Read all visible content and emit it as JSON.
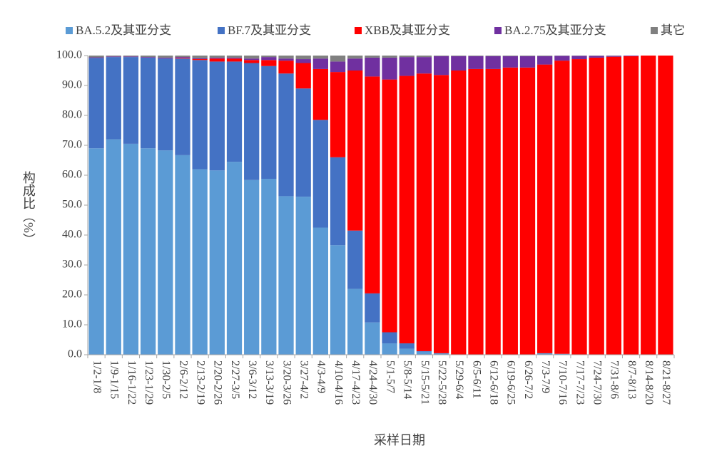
{
  "chart_data": {
    "type": "stacked_bar",
    "y_label": "构成比（%）",
    "x_label": "采样日期",
    "categories": [
      "1/2-1/8",
      "1/9-1/15",
      "1/16-1/22",
      "1/23-1/29",
      "1/30-2/5",
      "2/6-2/12",
      "2/13-2/19",
      "2/20-2/26",
      "2/27-3/5",
      "3/6-3/12",
      "3/13-3/19",
      "3/20-3/26",
      "3/27-4/2",
      "4/3-4/9",
      "4/10-4/16",
      "4/17-4/23",
      "4/24-4/30",
      "5/1-5/7",
      "5/8-5/14",
      "5/15-5/21",
      "5/22-5/28",
      "5/29-6/4",
      "6/5-6/11",
      "6/12-6/18",
      "6/19-6/25",
      "6/26-7/2",
      "7/3-7/9",
      "7/10-7/16",
      "7/17-7/23",
      "7/24-7/30",
      "7/31-8/6",
      "8/7-8/13",
      "8/14-8/20",
      "8/21-8/27"
    ],
    "series": [
      {
        "name": "BA.5.2及其亚分支",
        "color": "#5b9bd5",
        "values": [
          69,
          72,
          70.5,
          69,
          68.3,
          66.7,
          62,
          61.6,
          64.5,
          58.4,
          58.8,
          53,
          52.8,
          42.5,
          36.6,
          22,
          10.8,
          3.8,
          2,
          1,
          0.5,
          0,
          0,
          0,
          0,
          0,
          0.5,
          0.3,
          0,
          0,
          0,
          0,
          0,
          0
        ]
      },
      {
        "name": "BF.7及其亚分支",
        "color": "#4472c4",
        "values": [
          30.2,
          27.5,
          29,
          30.3,
          30.7,
          32.3,
          36.5,
          36.4,
          33.5,
          39.1,
          37.7,
          41,
          36.2,
          36,
          29.4,
          19.5,
          9.7,
          3.7,
          1.8,
          0.2,
          0,
          0,
          0,
          0,
          0,
          0,
          0,
          0,
          0,
          0,
          0,
          0,
          0,
          0
        ]
      },
      {
        "name": "XBB及其亚分支",
        "color": "#ff0000",
        "values": [
          0,
          0,
          0,
          0,
          0,
          0.2,
          0.3,
          1,
          1,
          1,
          2,
          4.3,
          8.5,
          17,
          28.5,
          53.5,
          72.5,
          84.5,
          89.4,
          92.8,
          93,
          95,
          95.5,
          95.5,
          96,
          96,
          96.5,
          98,
          98.8,
          99.3,
          99.6,
          99.8,
          100,
          100
        ]
      },
      {
        "name": "BA.2.75及其亚分支",
        "color": "#7030a0",
        "values": [
          0.2,
          0.2,
          0.2,
          0.2,
          0.3,
          0.3,
          0.3,
          0.3,
          0.3,
          0.5,
          1,
          0.7,
          1.3,
          3.5,
          3.5,
          4,
          6.3,
          7.3,
          6.3,
          5.5,
          6.3,
          4.8,
          4.3,
          4.3,
          3.8,
          3.8,
          2.8,
          1.6,
          1.1,
          0.6,
          0.3,
          0.2,
          0,
          0
        ]
      },
      {
        "name": "其它",
        "color": "#808080",
        "values": [
          0.6,
          0.3,
          0.3,
          0.5,
          0.7,
          0.5,
          0.9,
          0.7,
          0.7,
          1,
          0.5,
          1,
          1.2,
          1,
          2,
          1,
          0.7,
          0.7,
          0.5,
          0.5,
          0.2,
          0.2,
          0.2,
          0.2,
          0.2,
          0.2,
          0.2,
          0.1,
          0.1,
          0.1,
          0.1,
          0,
          0,
          0
        ]
      }
    ],
    "ylim": [
      0,
      100
    ],
    "yticks": [
      {
        "value": 0,
        "label": "0.0"
      },
      {
        "value": 10,
        "label": "10.0"
      },
      {
        "value": 20,
        "label": "20.0"
      },
      {
        "value": 30,
        "label": "30.0"
      },
      {
        "value": 40,
        "label": "40.0"
      },
      {
        "value": 50,
        "label": "50.0"
      },
      {
        "value": 60,
        "label": "60.0"
      },
      {
        "value": 70,
        "label": "70.0"
      },
      {
        "value": 80,
        "label": "80.0"
      },
      {
        "value": 90,
        "label": "90.0"
      },
      {
        "value": 100,
        "label": "100.0"
      }
    ],
    "legend": "top"
  }
}
